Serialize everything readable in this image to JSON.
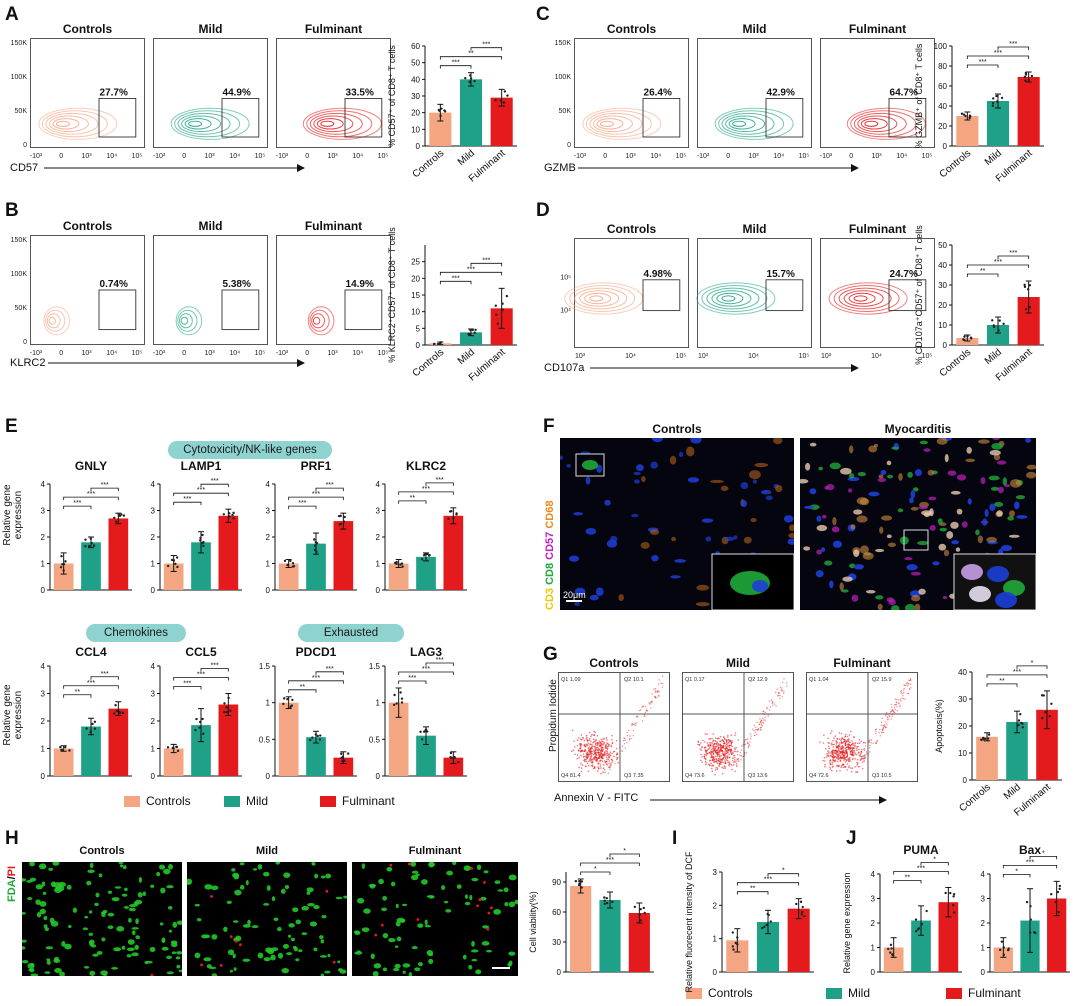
{
  "colors": {
    "controls": "#f4a582",
    "mild": "#1fa187",
    "fulminant": "#e41a1c",
    "pill": "#8fd3d0"
  },
  "groups": [
    "Controls",
    "Mild",
    "Fulminant"
  ],
  "legend": [
    "Controls",
    "Mild",
    "Fulminant"
  ],
  "panels": {
    "A": {
      "label": "A",
      "marker": "CD57",
      "percents": [
        "27.7%",
        "44.9%",
        "33.5%"
      ],
      "yticks": [
        "150K",
        "100K",
        "50K",
        "0"
      ],
      "xticks": [
        "-10³",
        "0",
        "10³",
        "10⁴",
        "10⁵"
      ]
    },
    "B": {
      "label": "B",
      "marker": "KLRC2",
      "percents": [
        "0.74%",
        "5.38%",
        "14.9%"
      ],
      "yticks": [
        "150K",
        "100K",
        "50K",
        "0"
      ],
      "xticks": [
        "-10³",
        "0",
        "10³",
        "10⁴",
        "10⁵"
      ]
    },
    "C": {
      "label": "C",
      "marker": "GZMB",
      "percents": [
        "26.4%",
        "42.9%",
        "64.7%"
      ],
      "yticks": [
        "150K",
        "100K",
        "50K",
        "0"
      ],
      "xticks": [
        "-10³",
        "0",
        "10³",
        "10⁴",
        "10⁵"
      ]
    },
    "D": {
      "label": "D",
      "marker": "CD107a",
      "percents": [
        "4.98%",
        "15.7%",
        "24.7%"
      ],
      "yticks": [
        "10⁵",
        "10⁴"
      ],
      "xticks": [
        "10³",
        "10⁴",
        "10⁵"
      ]
    },
    "E": {
      "label": "E",
      "pills": [
        "Cytotoxicity/NK-like genes",
        "Chemokines",
        "Exhausted"
      ],
      "ylabel": "Relative gene expression"
    },
    "F": {
      "label": "F",
      "titles": [
        "Controls",
        "Myocarditis"
      ],
      "stain": [
        "CD3",
        "CD8",
        "CD57",
        "CD68"
      ],
      "scalebar": "20μm"
    },
    "G": {
      "label": "G",
      "ylabel": "Propidum Iodide",
      "xlabel": "Annexin V - FITC",
      "quads": [
        [
          "Q1 1.09",
          "Q2 10.1",
          "Q4 81.4",
          "Q3 7.35"
        ],
        [
          "Q1 0.17",
          "Q2 12.9",
          "Q4 73.6",
          "Q3 13.6"
        ],
        [
          "Q1 1.04",
          "Q2 15.9",
          "Q4 72.6",
          "Q3 10.5"
        ]
      ]
    },
    "H": {
      "label": "H",
      "stain": [
        "FDA",
        "/",
        "PI"
      ]
    },
    "I": {
      "label": "I"
    },
    "J": {
      "label": "J"
    }
  },
  "chart_data": [
    {
      "panel": "A",
      "type": "bar",
      "categories": [
        "Controls",
        "Mild",
        "Fulminant"
      ],
      "values": [
        20,
        40,
        29
      ],
      "errors": [
        5,
        4,
        5
      ],
      "ylabel": "% CD57⁺ of CD8⁺ T cells",
      "ylim": [
        0,
        60
      ],
      "yticks": [
        0,
        10,
        20,
        30,
        40,
        50,
        60
      ],
      "sig": [
        "***",
        "**",
        "***"
      ]
    },
    {
      "panel": "B",
      "type": "bar",
      "categories": [
        "Controls",
        "Mild",
        "Fulminant"
      ],
      "values": [
        0.5,
        3.8,
        11
      ],
      "errors": [
        0.4,
        1,
        6
      ],
      "ylabel": "% KLRC2⁺CD57⁺ of CD8⁺ T cells",
      "ylim": [
        0,
        30
      ],
      "yticks": [
        0,
        5,
        10,
        15,
        20,
        25
      ],
      "sig": [
        "***",
        "***",
        "***"
      ]
    },
    {
      "panel": "C",
      "type": "bar",
      "categories": [
        "Controls",
        "Mild",
        "Fulminant"
      ],
      "values": [
        30,
        45,
        69
      ],
      "errors": [
        4,
        7,
        5
      ],
      "ylabel": "% GZMB⁺ of CD8⁺ T cells",
      "ylim": [
        0,
        100
      ],
      "yticks": [
        0,
        20,
        40,
        60,
        80,
        100
      ],
      "sig": [
        "***",
        "***",
        "***"
      ]
    },
    {
      "panel": "D",
      "type": "bar",
      "categories": [
        "Controls",
        "Mild",
        "Fulminant"
      ],
      "values": [
        3.5,
        10,
        24
      ],
      "errors": [
        1.5,
        4,
        8
      ],
      "ylabel": "% CD107a⁺CD57⁺ of CD8⁺ T cells",
      "ylim": [
        0,
        50
      ],
      "yticks": [
        0,
        10,
        20,
        30,
        40,
        50
      ],
      "sig": [
        "**",
        "***",
        "***"
      ]
    },
    {
      "panel": "E",
      "gene": "GNLY",
      "type": "bar",
      "categories": [
        "Controls",
        "Mild",
        "Fulminant"
      ],
      "values": [
        1.0,
        1.8,
        2.7
      ],
      "errors": [
        0.4,
        0.2,
        0.2
      ],
      "ylim": [
        0,
        4
      ],
      "yticks": [
        0,
        1,
        2,
        3,
        4
      ],
      "sig": [
        "***",
        "***",
        "***"
      ]
    },
    {
      "panel": "E",
      "gene": "LAMP1",
      "type": "bar",
      "categories": [
        "Controls",
        "Mild",
        "Fulminant"
      ],
      "values": [
        1.0,
        1.8,
        2.8
      ],
      "errors": [
        0.3,
        0.4,
        0.25
      ],
      "ylim": [
        0,
        4
      ],
      "yticks": [
        0,
        1,
        2,
        3,
        4
      ],
      "sig": [
        "***",
        "***",
        "***"
      ]
    },
    {
      "panel": "E",
      "gene": "PRF1",
      "type": "bar",
      "categories": [
        "Controls",
        "Mild",
        "Fulminant"
      ],
      "values": [
        1.0,
        1.75,
        2.6
      ],
      "errors": [
        0.15,
        0.4,
        0.3
      ],
      "ylim": [
        0,
        4
      ],
      "yticks": [
        0,
        1,
        2,
        3,
        4
      ],
      "sig": [
        "***",
        "***",
        "***"
      ]
    },
    {
      "panel": "E",
      "gene": "KLRC2",
      "type": "bar",
      "categories": [
        "Controls",
        "Mild",
        "Fulminant"
      ],
      "values": [
        1.0,
        1.25,
        2.8
      ],
      "errors": [
        0.15,
        0.15,
        0.3
      ],
      "ylim": [
        0,
        4
      ],
      "yticks": [
        0,
        1,
        2,
        3,
        4
      ],
      "sig": [
        "**",
        "***",
        "***"
      ]
    },
    {
      "panel": "E",
      "gene": "CCL4",
      "type": "bar",
      "categories": [
        "Controls",
        "Mild",
        "Fulminant"
      ],
      "values": [
        1.0,
        1.8,
        2.45
      ],
      "errors": [
        0.1,
        0.3,
        0.25
      ],
      "ylim": [
        0,
        4
      ],
      "yticks": [
        0,
        1,
        2,
        3,
        4
      ],
      "sig": [
        "**",
        "***",
        "***"
      ]
    },
    {
      "panel": "E",
      "gene": "CCL5",
      "type": "bar",
      "categories": [
        "Controls",
        "Mild",
        "Fulminant"
      ],
      "values": [
        1.0,
        1.85,
        2.6
      ],
      "errors": [
        0.15,
        0.6,
        0.4
      ],
      "ylim": [
        0,
        4
      ],
      "yticks": [
        0,
        1,
        2,
        3,
        4
      ],
      "sig": [
        "***",
        "***",
        "***"
      ]
    },
    {
      "panel": "E",
      "gene": "PDCD1",
      "type": "bar",
      "categories": [
        "Controls",
        "Mild",
        "Fulminant"
      ],
      "values": [
        1.0,
        0.53,
        0.25
      ],
      "errors": [
        0.08,
        0.08,
        0.08
      ],
      "ylim": [
        0,
        1.5
      ],
      "yticks": [
        0,
        0.5,
        1.0,
        1.5
      ],
      "sig": [
        "**",
        "***",
        "***"
      ]
    },
    {
      "panel": "E",
      "gene": "LAG3",
      "type": "bar",
      "categories": [
        "Controls",
        "Mild",
        "Fulminant"
      ],
      "values": [
        1.0,
        0.55,
        0.25
      ],
      "errors": [
        0.2,
        0.12,
        0.08
      ],
      "ylim": [
        0,
        1.5
      ],
      "yticks": [
        0,
        0.5,
        1.0,
        1.5
      ],
      "sig": [
        "***",
        "***",
        "***"
      ]
    },
    {
      "panel": "G",
      "type": "bar",
      "categories": [
        "Controls",
        "Mild",
        "Fulminant"
      ],
      "values": [
        16,
        21.5,
        26
      ],
      "errors": [
        1.5,
        4,
        7
      ],
      "ylabel": "Apoptosis(%)",
      "ylim": [
        0,
        40
      ],
      "yticks": [
        0,
        10,
        20,
        30,
        40
      ],
      "sig": [
        "**",
        "***",
        "*"
      ]
    },
    {
      "panel": "H",
      "type": "bar",
      "categories": [
        "Controls",
        "Mild",
        "Fulminant"
      ],
      "values": [
        86,
        72,
        59
      ],
      "errors": [
        7,
        8,
        10
      ],
      "ylabel": "Cell viability(%)",
      "ylim": [
        0,
        100
      ],
      "yticks": [
        0,
        30,
        60,
        90
      ],
      "sig": [
        "*",
        "***",
        "*"
      ]
    },
    {
      "panel": "I",
      "type": "bar",
      "categories": [
        "Controls",
        "Mild",
        "Fulminant"
      ],
      "values": [
        0.95,
        1.5,
        1.9
      ],
      "errors": [
        0.35,
        0.35,
        0.3
      ],
      "ylabel": "Relative fluorecent intensity of DCF",
      "ylim": [
        0,
        3
      ],
      "yticks": [
        0,
        1,
        2,
        3
      ],
      "sig": [
        "**",
        "***",
        "*"
      ]
    },
    {
      "panel": "J",
      "gene": "PUMA",
      "type": "bar",
      "categories": [
        "Controls",
        "Mild",
        "Fulminant"
      ],
      "values": [
        1.0,
        2.1,
        2.85
      ],
      "errors": [
        0.4,
        0.6,
        0.6
      ],
      "ylabel": "Relative gene expression",
      "ylim": [
        0,
        4
      ],
      "yticks": [
        0,
        1,
        2,
        3,
        4
      ],
      "sig": [
        "**",
        "***",
        "*"
      ]
    },
    {
      "panel": "J",
      "gene": "Bax",
      "type": "bar",
      "categories": [
        "Controls",
        "Mild",
        "Fulminant"
      ],
      "values": [
        1.0,
        2.1,
        3.0
      ],
      "errors": [
        0.4,
        1.3,
        0.7
      ],
      "ylim": [
        0,
        4
      ],
      "yticks": [
        0,
        1,
        2,
        3,
        4
      ],
      "sig": [
        "*",
        "***",
        "*"
      ]
    }
  ]
}
